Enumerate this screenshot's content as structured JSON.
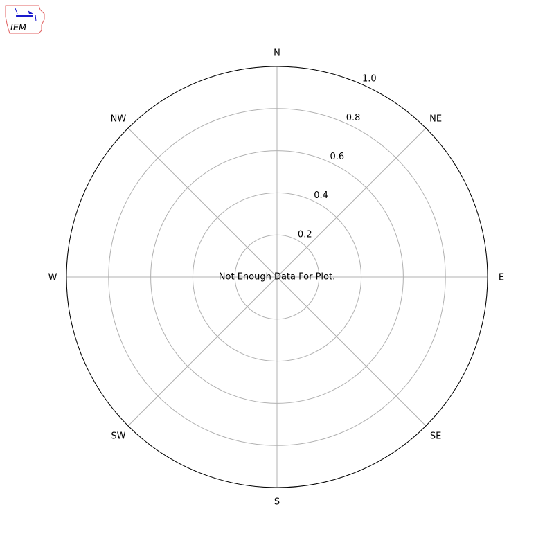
{
  "logo": {
    "text": "IEM",
    "colors": {
      "outline": "#e06060",
      "symbol": "#1a1acc",
      "text": "#cc2222"
    }
  },
  "chart_data": {
    "type": "polar",
    "message": "Not Enough Data For Plot.",
    "direction_labels": [
      "N",
      "NE",
      "E",
      "SE",
      "S",
      "SW",
      "W",
      "NW"
    ],
    "radial_ticks": [
      0.2,
      0.4,
      0.6,
      0.8,
      1.0
    ],
    "radial_tick_labels": [
      "0.2",
      "0.4",
      "0.6",
      "0.8",
      "1.0"
    ],
    "rlim": [
      0,
      1.0
    ],
    "grid": true,
    "series": [],
    "colors": {
      "grid": "#b0b0b0",
      "frame": "#000000"
    }
  }
}
